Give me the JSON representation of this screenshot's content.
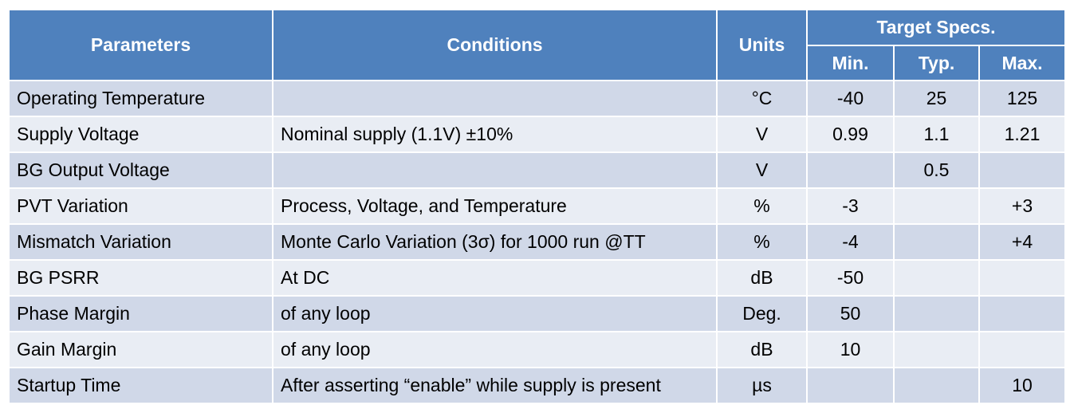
{
  "header": {
    "parameters": "Parameters",
    "conditions": "Conditions",
    "units": "Units",
    "target_specs": "Target Specs.",
    "min": "Min.",
    "typ": "Typ.",
    "max": "Max."
  },
  "rows": [
    {
      "parameter": "Operating Temperature",
      "condition": "",
      "unit": "°C",
      "min": "-40",
      "typ": "25",
      "max": "125"
    },
    {
      "parameter": "Supply Voltage",
      "condition": "Nominal supply (1.1V) ±10%",
      "unit": "V",
      "min": "0.99",
      "typ": "1.1",
      "max": "1.21"
    },
    {
      "parameter": "BG Output Voltage",
      "condition": "",
      "unit": "V",
      "min": "",
      "typ": "0.5",
      "max": ""
    },
    {
      "parameter": "PVT Variation",
      "condition": "Process, Voltage, and Temperature",
      "unit": "%",
      "min": "-3",
      "typ": "",
      "max": "+3"
    },
    {
      "parameter": "Mismatch Variation",
      "condition": "Monte Carlo Variation (3σ) for 1000 run @TT",
      "unit": "%",
      "min": "-4",
      "typ": "",
      "max": "+4"
    },
    {
      "parameter": "BG PSRR",
      "condition": "At DC",
      "unit": "dB",
      "min": "-50",
      "typ": "",
      "max": ""
    },
    {
      "parameter": "Phase Margin",
      "condition": "of any loop",
      "unit": "Deg.",
      "min": "50",
      "typ": "",
      "max": ""
    },
    {
      "parameter": "Gain Margin",
      "condition": "of any loop",
      "unit": "dB",
      "min": "10",
      "typ": "",
      "max": ""
    },
    {
      "parameter": "Startup Time",
      "condition": "After asserting “enable” while supply is present",
      "unit": "µs",
      "min": "",
      "typ": "",
      "max": "10"
    }
  ]
}
